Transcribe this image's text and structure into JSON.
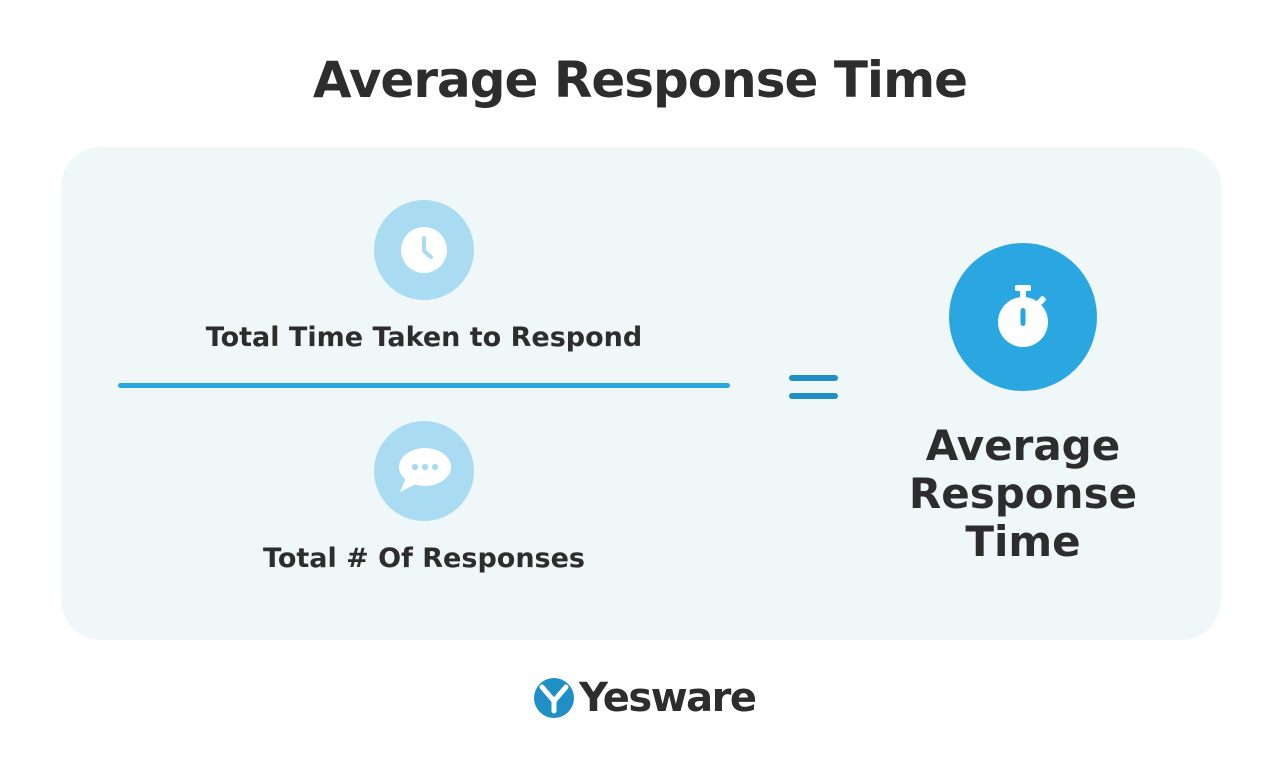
{
  "title": "Average Response Time",
  "numerator": {
    "label": "Total Time Taken to Respond",
    "icon": "clock-icon"
  },
  "denominator": {
    "label": "Total # Of Responses",
    "icon": "chat-bubble-icon"
  },
  "result": {
    "icon": "stopwatch-icon",
    "lines": [
      "Average",
      "Response",
      "Time"
    ]
  },
  "brand": {
    "name": "Yesware",
    "icon": "yesware-logo-icon"
  },
  "colors": {
    "accent": "#2aa7e0",
    "light_accent": "#a9dcf3",
    "panel_bg": "#f0f7f9",
    "text": "#2d2d2d"
  }
}
